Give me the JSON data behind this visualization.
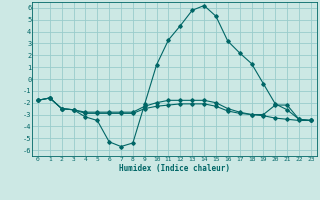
{
  "xlabel": "Humidex (Indice chaleur)",
  "bg_color": "#cce8e4",
  "grid_color": "#99cccc",
  "line_color": "#006666",
  "xlim": [
    -0.5,
    23.5
  ],
  "ylim": [
    -6.5,
    6.5
  ],
  "xticks": [
    0,
    1,
    2,
    3,
    4,
    5,
    6,
    7,
    8,
    9,
    10,
    11,
    12,
    13,
    14,
    15,
    16,
    17,
    18,
    19,
    20,
    21,
    22,
    23
  ],
  "yticks": [
    -6,
    -5,
    -4,
    -3,
    -2,
    -1,
    0,
    1,
    2,
    3,
    4,
    5,
    6
  ],
  "series": [
    {
      "x": [
        0,
        1,
        2,
        3,
        4,
        5,
        6,
        7,
        8,
        9,
        10,
        11,
        12,
        13,
        14,
        15,
        16,
        17,
        18,
        19,
        20,
        21,
        22,
        23
      ],
      "y": [
        -1.8,
        -1.6,
        -2.5,
        -2.6,
        -3.2,
        -3.5,
        -5.3,
        -5.7,
        -5.4,
        -2.1,
        1.2,
        3.3,
        4.5,
        5.8,
        6.2,
        5.3,
        3.2,
        2.2,
        1.3,
        -0.4,
        -2.1,
        -2.6,
        -3.4,
        -3.5
      ]
    },
    {
      "x": [
        0,
        1,
        2,
        3,
        4,
        5,
        6,
        7,
        8,
        9,
        10,
        11,
        12,
        13,
        14,
        15,
        16,
        17,
        18,
        19,
        20,
        21,
        22,
        23
      ],
      "y": [
        -1.8,
        -1.6,
        -2.5,
        -2.6,
        -2.9,
        -2.9,
        -2.9,
        -2.9,
        -2.9,
        -2.5,
        -2.3,
        -2.2,
        -2.1,
        -2.1,
        -2.1,
        -2.3,
        -2.7,
        -2.9,
        -3.0,
        -3.1,
        -3.3,
        -3.4,
        -3.5,
        -3.5
      ]
    },
    {
      "x": [
        0,
        1,
        2,
        3,
        4,
        5,
        6,
        7,
        8,
        9,
        10,
        11,
        12,
        13,
        14,
        15,
        16,
        17,
        18,
        19,
        20,
        21,
        22,
        23
      ],
      "y": [
        -1.8,
        -1.6,
        -2.5,
        -2.6,
        -2.8,
        -2.8,
        -2.8,
        -2.8,
        -2.8,
        -2.3,
        -2.0,
        -1.8,
        -1.8,
        -1.8,
        -1.8,
        -2.0,
        -2.5,
        -2.8,
        -3.0,
        -3.0,
        -2.2,
        -2.2,
        -3.4,
        -3.5
      ]
    }
  ]
}
